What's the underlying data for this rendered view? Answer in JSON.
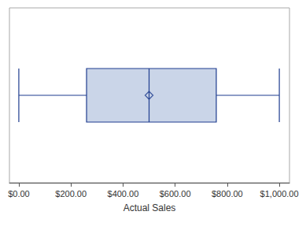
{
  "chart_data": {
    "type": "boxplot",
    "orientation": "horizontal",
    "xlabel": "Actual Sales",
    "boxes": [
      {
        "min": 0,
        "q1": 260,
        "median": 500,
        "q3": 758,
        "max": 1000,
        "mean": 500
      }
    ],
    "color": "#cad5e8",
    "marker": "diamond",
    "xlim": [
      -36,
      1039
    ],
    "xticks": [
      {
        "value": 0,
        "label": "$0.00"
      },
      {
        "value": 200,
        "label": "$200.00"
      },
      {
        "value": 400,
        "label": "$400.00"
      },
      {
        "value": 600,
        "label": "$600.00"
      },
      {
        "value": 800,
        "label": "$800.00"
      },
      {
        "value": 1000,
        "label": "$1,000.00"
      }
    ],
    "grid": false,
    "tick_labels": "x"
  }
}
